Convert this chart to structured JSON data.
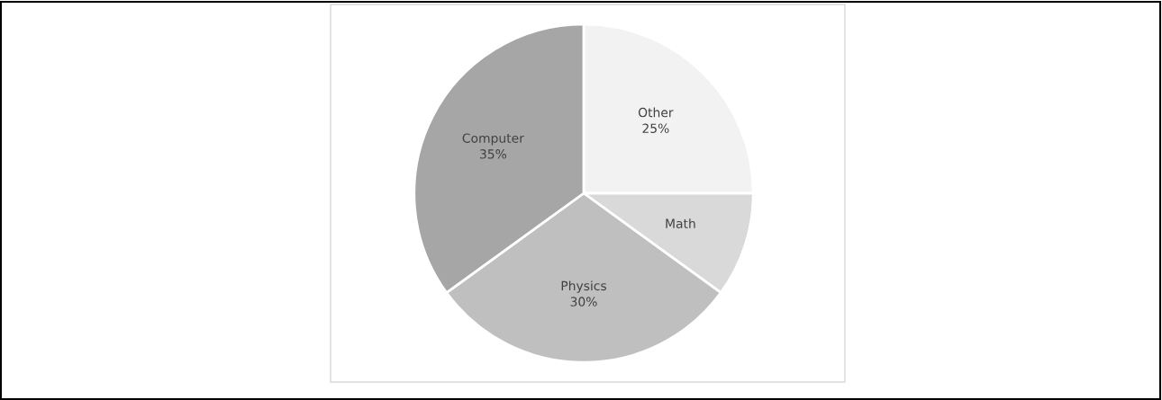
{
  "chart_data": {
    "type": "pie",
    "categories": [
      "Other",
      "Math",
      "Physics",
      "Computer"
    ],
    "values": [
      25,
      10,
      30,
      35
    ],
    "value_labels": [
      "25%",
      null,
      "30%",
      "35%"
    ],
    "colors": [
      "#f2f2f2",
      "#d9d9d9",
      "#bfbfbf",
      "#a6a6a6"
    ],
    "legend": false
  }
}
